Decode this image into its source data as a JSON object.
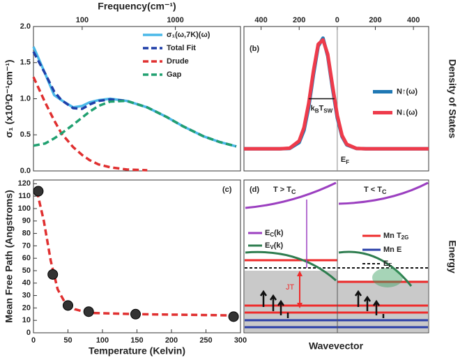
{
  "chart_data": [
    {
      "type": "line",
      "axis_title_x": "Frequency(cm⁻¹)",
      "axis_title_y": "σ₁ (x10³Ω⁻¹cm⁻¹)",
      "x_axis_side": "top",
      "xscale": "log",
      "xlim": [
        30,
        5000
      ],
      "xticks": [
        100,
        1000
      ],
      "ylim": [
        0,
        2
      ],
      "yticks": [
        {
          "value": 0,
          "label": "0.0"
        },
        {
          "value": 0.5,
          "label": "0.5"
        },
        {
          "value": 1,
          "label": "1.0"
        },
        {
          "value": 1.5,
          "label": "1.5"
        },
        {
          "value": 2,
          "label": "2.0"
        }
      ],
      "legend": "upper right",
      "x": [
        30,
        40,
        50,
        60,
        80,
        100,
        120,
        150,
        200,
        300,
        500,
        800,
        1200,
        2000,
        3000,
        4500
      ],
      "series": [
        {
          "name": "σ₁(ω,7K)(ω)",
          "color": "#4ab8e8",
          "dash": false,
          "values": [
            1.72,
            1.35,
            1.05,
            0.98,
            0.88,
            0.9,
            0.95,
            0.98,
            1.0,
            0.97,
            0.88,
            0.75,
            0.62,
            0.48,
            0.4,
            0.34
          ]
        },
        {
          "name": "Total Fit",
          "color": "#1f3fa8",
          "dash": true,
          "values": [
            1.65,
            1.35,
            1.1,
            0.98,
            0.87,
            0.86,
            0.92,
            0.97,
            0.99,
            0.97,
            0.88,
            0.75,
            0.62,
            0.48,
            0.4,
            0.34
          ]
        },
        {
          "name": "Drude",
          "color": "#e03030",
          "dash": true,
          "values": [
            1.3,
            0.95,
            0.7,
            0.52,
            0.33,
            0.22,
            0.15,
            0.09,
            0.05,
            0.02,
            0.01,
            null,
            null,
            null,
            null,
            null
          ]
        },
        {
          "name": "Gap",
          "color": "#20a070",
          "dash": true,
          "values": [
            0.35,
            0.38,
            0.45,
            0.52,
            0.64,
            0.74,
            0.82,
            0.9,
            0.96,
            0.97,
            0.88,
            0.75,
            0.62,
            0.48,
            0.4,
            0.34
          ]
        }
      ]
    },
    {
      "type": "line",
      "x_axis_side": "top",
      "panel_label": "(b)",
      "ylabel_right": "Density of States",
      "xlim": [
        -490,
        480
      ],
      "xticks": [
        {
          "value": -400,
          "label": "400"
        },
        {
          "value": -200,
          "label": "200"
        },
        0,
        200,
        400
      ],
      "ylim": [
        -0.2,
        1.1
      ],
      "legend": "center right",
      "annotation": [
        "k",
        "B",
        "T",
        "SW"
      ],
      "ef_label": [
        "E",
        "F"
      ],
      "x": [
        -490,
        -300,
        -250,
        -200,
        -175,
        -150,
        -125,
        -100,
        -75,
        -50,
        -25,
        0,
        25,
        50,
        100,
        150,
        480
      ],
      "series": [
        {
          "name": "N↑(ω)",
          "color": "#1f78b4",
          "dash": false,
          "values": [
            0,
            0,
            0.003,
            0.056,
            0.164,
            0.375,
            0.667,
            0.923,
            0.995,
            0.835,
            0.546,
            0.278,
            0.11,
            0.034,
            0.002,
            0,
            0
          ]
        },
        {
          "name": "N↓(ω)",
          "color": "#ee3b4b",
          "dash": false,
          "values": [
            0,
            0,
            0.005,
            0.07,
            0.19,
            0.41,
            0.7,
            0.94,
            0.98,
            0.85,
            0.57,
            0.3,
            0.12,
            0.04,
            0.003,
            0,
            0
          ]
        }
      ]
    },
    {
      "type": "scatter",
      "axis_title_x": "Temperature (Kelvin)",
      "axis_title_y": "Mean Free Path (Angstroms)",
      "panel_label": "(c)",
      "xlim": [
        0,
        300
      ],
      "xticks": [
        0,
        50,
        100,
        150,
        200,
        250,
        300
      ],
      "ylim": [
        0,
        123
      ],
      "yticks": [
        0,
        10,
        20,
        30,
        40,
        50,
        60,
        70,
        80,
        90,
        100,
        110,
        120
      ],
      "marker_color": "#333333",
      "x": [
        7,
        28,
        50,
        80,
        148,
        290
      ],
      "values": [
        114,
        47,
        22,
        17,
        15,
        13
      ],
      "fit_color": "#e03030",
      "fit_x": [
        5,
        15,
        25,
        35,
        45,
        60,
        80,
        150,
        290
      ],
      "fit_values": [
        114,
        90,
        58,
        35,
        25,
        19,
        16,
        15,
        14
      ]
    }
  ],
  "schematic": {
    "panel_label": "(d)",
    "left_title": [
      "T > T",
      "C"
    ],
    "right_title": [
      "T < T",
      "C"
    ],
    "ec_label": [
      "E",
      "C",
      "(k)"
    ],
    "ev_label": [
      "E",
      "V",
      "(k)"
    ],
    "t2g_label": [
      "Mn T",
      "2G"
    ],
    "e_label": "Mn E",
    "ef_label": [
      "E",
      "F"
    ],
    "jt_label": "JT",
    "x_title": "Wavevector",
    "y_title": "Energy"
  }
}
